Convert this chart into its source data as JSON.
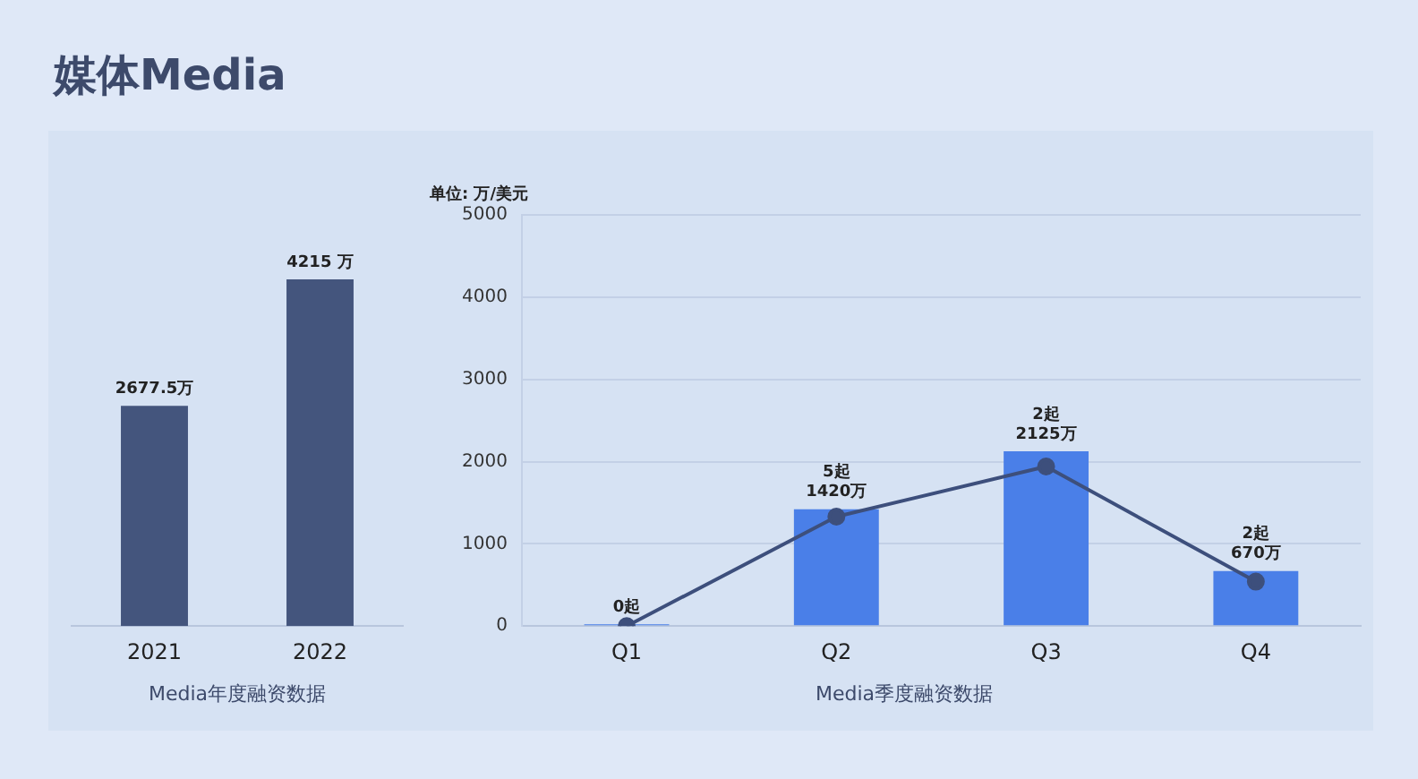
{
  "chart_data": [
    {
      "type": "bar",
      "title": "媒体Media",
      "xlabel": "Media年度融资数据",
      "categories": [
        "2021",
        "2022"
      ],
      "values": [
        2677.5,
        4215
      ],
      "color": "#44557d",
      "value_labels": [
        "2677.5万",
        "4215 万"
      ],
      "tick_labels": "x",
      "legend": false
    },
    {
      "type": "bar",
      "xlabel": "Media季度融资数据",
      "ylabel": "单位: 万/美元",
      "categories": [
        "Q1",
        "Q2",
        "Q3",
        "Q4"
      ],
      "ylim": [
        0,
        5000
      ],
      "yticks": [
        0,
        1000,
        2000,
        3000,
        4000,
        5000
      ],
      "grid": "y",
      "legend": false,
      "series": [
        {
          "type": "bar",
          "color": "#4a7fe8",
          "values": [
            0,
            1420,
            2125,
            670
          ],
          "value_labels": [
            "0起",
            "5起\n1420万",
            "2起\n2125万",
            "2起\n670万"
          ]
        },
        {
          "type": "line",
          "color": "#3d4f7c",
          "values": [
            0,
            1330,
            1940,
            540
          ],
          "marker": "circle"
        }
      ]
    }
  ]
}
